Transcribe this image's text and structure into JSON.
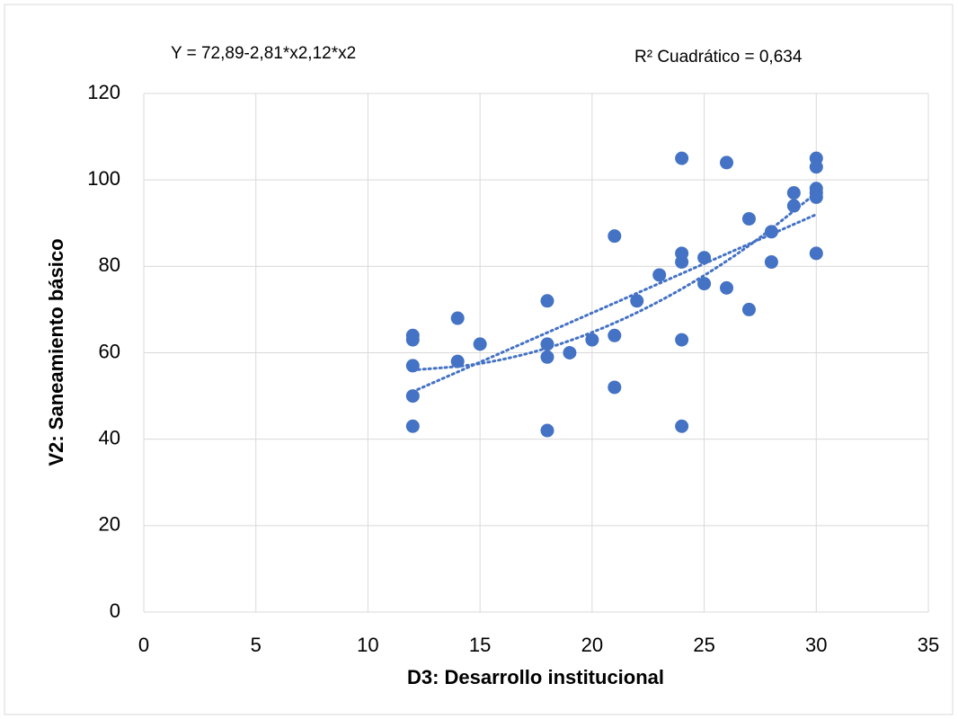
{
  "chart_data": {
    "type": "scatter",
    "annotations": [
      "Y = 72,89-2,81*x2,12*x2",
      "R² Cuadrático = 0,634"
    ],
    "x_label": "D3: Desarrollo institucional",
    "y_label": "V2: Saneamiento básico",
    "xlim": [
      0,
      35
    ],
    "xticks": [
      0,
      5,
      10,
      15,
      20,
      25,
      30,
      35
    ],
    "ylim": [
      0,
      120
    ],
    "yticks": [
      0,
      20,
      40,
      60,
      80,
      100,
      120
    ],
    "grid": true,
    "color": "#4472c4",
    "x": [
      12,
      12,
      12,
      12,
      12,
      14,
      14,
      15,
      18,
      18,
      18,
      18,
      19,
      20,
      21,
      21,
      21,
      22,
      23,
      24,
      24,
      24,
      24,
      24,
      25,
      25,
      26,
      26,
      27,
      27,
      28,
      28,
      29,
      29,
      30,
      30,
      30,
      30,
      30,
      30
    ],
    "values": [
      64,
      63,
      57,
      50,
      43,
      68,
      58,
      62,
      72,
      62,
      59,
      42,
      60,
      63,
      87,
      64,
      52,
      72,
      78,
      105,
      83,
      81,
      63,
      43,
      82,
      76,
      104,
      75,
      91,
      70,
      88,
      81,
      97,
      94,
      105,
      103,
      98,
      97,
      96,
      83
    ],
    "trendlines": [
      {
        "type": "linear",
        "x": [
          12,
          30
        ],
        "values": [
          51,
          92
        ]
      },
      {
        "type": "quadratic",
        "x": [
          12,
          15,
          18,
          21,
          24,
          27,
          30
        ],
        "values": [
          56,
          57.5,
          61.1,
          66.9,
          74.8,
          84.8,
          97
        ]
      }
    ]
  }
}
